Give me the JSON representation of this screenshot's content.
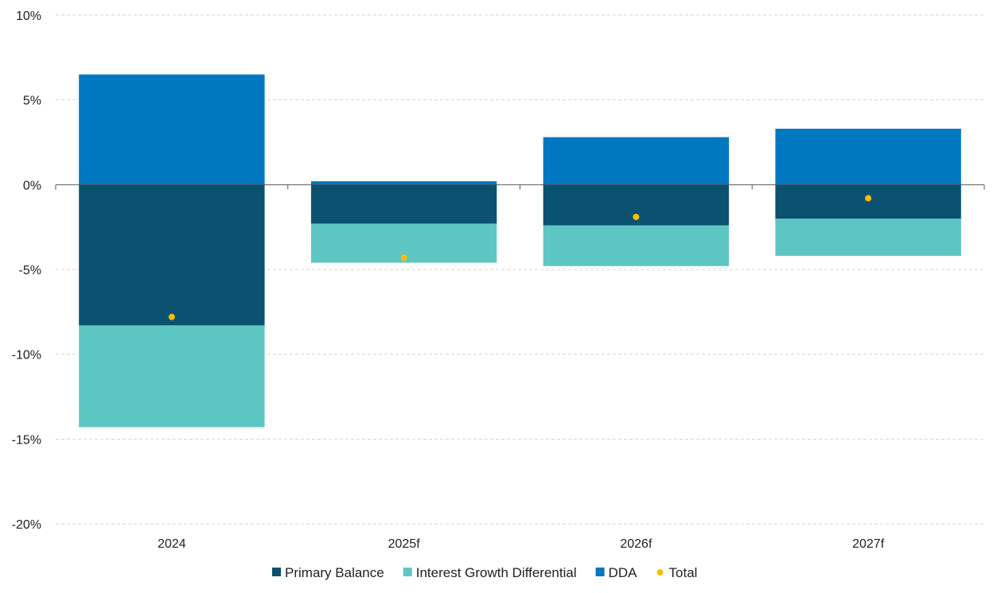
{
  "chart_data": {
    "type": "bar",
    "stacked": true,
    "title": "",
    "xlabel": "",
    "ylabel": "",
    "categories": [
      "2024",
      "2025f",
      "2026f",
      "2027f"
    ],
    "ylim": [
      -20,
      10
    ],
    "yticks": [
      10,
      5,
      0,
      -5,
      -10,
      -15,
      -20
    ],
    "ytick_labels": [
      "10%",
      "5%",
      "0%",
      "-5%",
      "-10%",
      "-15%",
      "-20%"
    ],
    "grid": true,
    "legend_position": "bottom",
    "series": [
      {
        "name": "Primary Balance",
        "kind": "bar",
        "color": "#0b5270",
        "values": [
          -8.3,
          -2.3,
          -2.4,
          -2.0
        ]
      },
      {
        "name": "Interest Growth Differential",
        "kind": "bar",
        "color": "#5ec6c2",
        "values": [
          -6.0,
          -2.3,
          -2.4,
          -2.2
        ]
      },
      {
        "name": "DDA",
        "kind": "bar",
        "color": "#0078c1",
        "values": [
          6.5,
          0.2,
          2.8,
          3.3
        ]
      },
      {
        "name": "Total",
        "kind": "point",
        "color": "#f6c000",
        "values": [
          -7.8,
          -4.3,
          -1.9,
          -0.8
        ]
      }
    ]
  }
}
